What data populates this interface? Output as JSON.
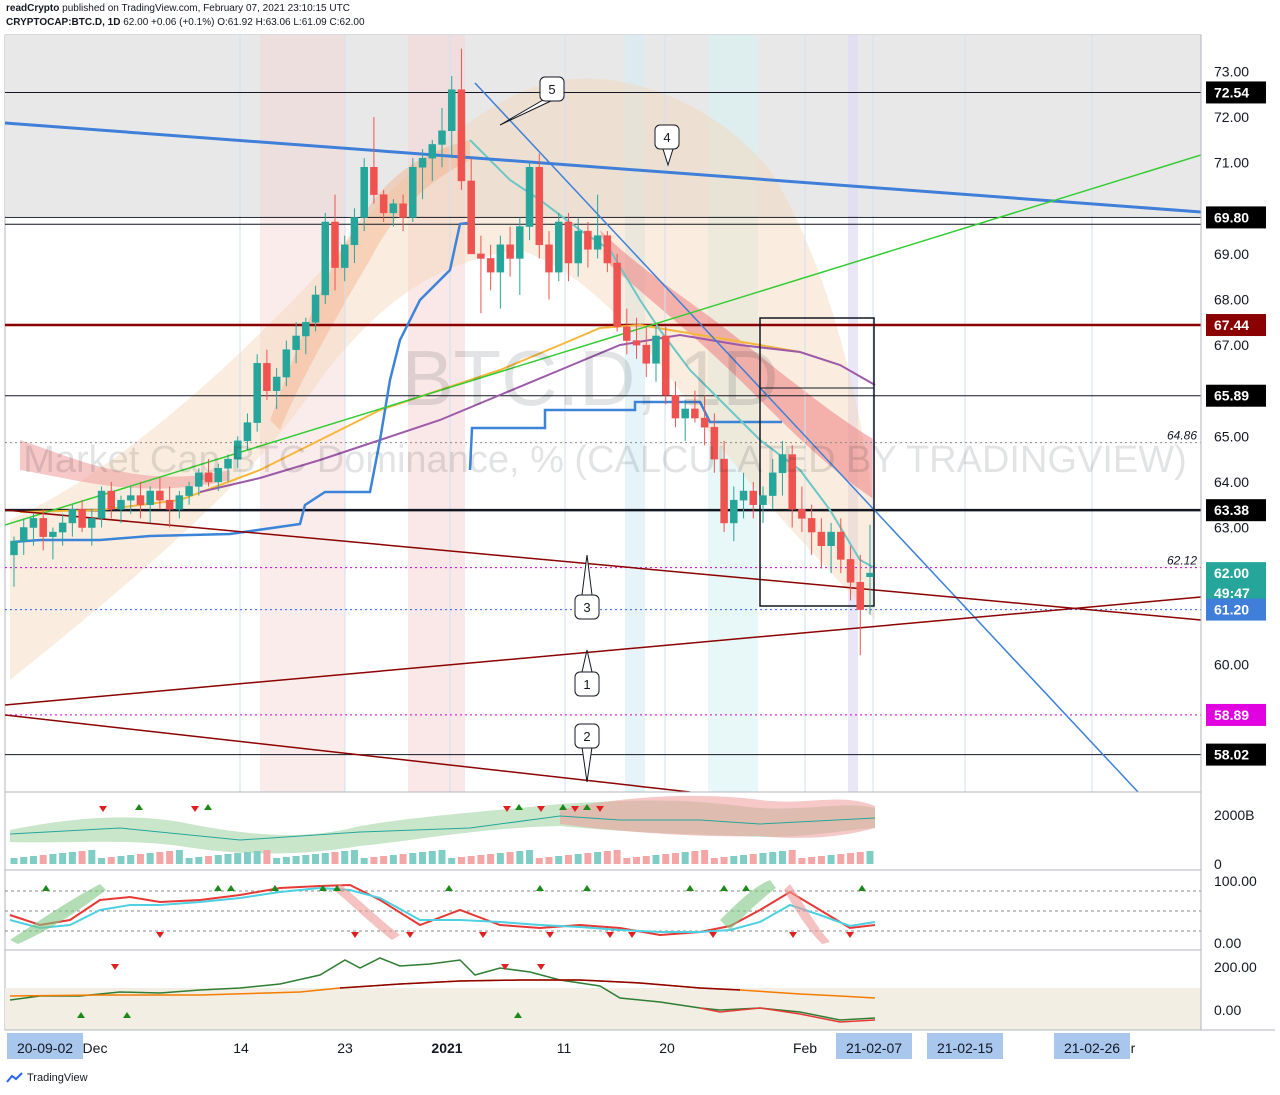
{
  "header": {
    "author": "readCrypto",
    "published_text": "published on TradingView.com, February 07, 2021 23:10:15 UTC",
    "symbol": "CRYPTOCAP:BTC.D, 1D",
    "last": "62.00",
    "change": "+0.06 (+0.1%)",
    "ohlc": "O:61.92 H:63.06 L:61.09 C:62.00"
  },
  "watermark": {
    "symbol": "BTC.D, 1D",
    "description": "Market Cap BTC Dominance, % (CALCULATED BY TRADINGVIEW)"
  },
  "footer": {
    "brand": "TradingView"
  },
  "colors": {
    "up": "#26a69a",
    "down": "#ef5350",
    "trend_blue": "#3f7fd9",
    "trend_green": "#33cc33",
    "trend_dark_red": "#8b0000",
    "ma_orange": "#f5b73b",
    "ma_purple": "#9c5aa8",
    "ma_blue": "#3c84d8"
  },
  "chart_data": {
    "type": "candlestick",
    "y_range": [
      57.2,
      73.8
    ],
    "y_ticks": [
      "73.00",
      "72.00",
      "71.00",
      "69.00",
      "68.00",
      "67.00",
      "65.00",
      "64.00",
      "63.00",
      "60.00"
    ],
    "price_labels": [
      {
        "text": "72.54",
        "value": 72.54,
        "style": "black"
      },
      {
        "text": "69.80",
        "value": 69.8,
        "style": "black"
      },
      {
        "text": "67.44",
        "value": 67.44,
        "style": "darkred"
      },
      {
        "text": "65.89",
        "value": 65.89,
        "style": "black"
      },
      {
        "text": "63.38",
        "value": 63.38,
        "style": "black"
      },
      {
        "text": "62.00",
        "value": 62.0,
        "style": "teal"
      },
      {
        "text": "49:47",
        "value": 61.56,
        "style": "teal"
      },
      {
        "text": "61.20",
        "value": 61.2,
        "style": "blue"
      },
      {
        "text": "58.89",
        "value": 58.89,
        "style": "magenta"
      },
      {
        "text": "58.02",
        "value": 58.02,
        "style": "black"
      }
    ],
    "inline_labels": [
      {
        "text": "64.86",
        "value": 64.86
      },
      {
        "text": "62.12",
        "value": 62.12
      }
    ],
    "horizontal_levels": [
      72.54,
      69.8,
      69.65,
      67.44,
      65.89,
      63.38,
      58.02
    ],
    "x_labels": [
      "20-09-02",
      "Dec",
      "14",
      "23",
      "2021",
      "11",
      "20",
      "Feb",
      "21-02-07",
      "21-02-15",
      "21-02-26",
      "r"
    ],
    "callouts": [
      "5",
      "4",
      "3",
      "1",
      "2"
    ],
    "candles": [
      [
        62.4,
        62.8,
        61.7,
        62.7
      ],
      [
        62.7,
        63.2,
        62.4,
        63.0
      ],
      [
        63.0,
        63.3,
        62.6,
        63.2
      ],
      [
        63.2,
        63.4,
        62.5,
        62.8
      ],
      [
        62.8,
        63.0,
        62.3,
        62.9
      ],
      [
        62.9,
        63.3,
        62.6,
        63.1
      ],
      [
        63.1,
        63.5,
        62.8,
        63.4
      ],
      [
        63.4,
        63.6,
        62.9,
        63.0
      ],
      [
        63.0,
        63.4,
        62.6,
        63.2
      ],
      [
        63.2,
        63.9,
        63.0,
        63.8
      ],
      [
        63.8,
        64.0,
        63.2,
        63.4
      ],
      [
        63.4,
        63.7,
        63.1,
        63.6
      ],
      [
        63.6,
        63.9,
        63.3,
        63.7
      ],
      [
        63.7,
        64.0,
        63.2,
        63.5
      ],
      [
        63.5,
        63.9,
        63.1,
        63.8
      ],
      [
        63.8,
        64.1,
        63.4,
        63.6
      ],
      [
        63.6,
        63.9,
        63.0,
        63.4
      ],
      [
        63.4,
        63.8,
        63.2,
        63.7
      ],
      [
        63.7,
        64.0,
        63.5,
        63.9
      ],
      [
        63.9,
        64.3,
        63.7,
        64.2
      ],
      [
        64.2,
        64.5,
        63.9,
        64.0
      ],
      [
        64.0,
        64.4,
        63.8,
        64.3
      ],
      [
        64.3,
        64.6,
        64.0,
        64.5
      ],
      [
        64.5,
        65.0,
        64.3,
        64.9
      ],
      [
        64.9,
        65.5,
        64.7,
        65.3
      ],
      [
        65.3,
        66.8,
        65.1,
        66.6
      ],
      [
        66.6,
        66.9,
        65.8,
        66.0
      ],
      [
        66.0,
        66.5,
        65.6,
        66.3
      ],
      [
        66.3,
        67.1,
        66.1,
        66.9
      ],
      [
        66.9,
        67.5,
        66.6,
        67.2
      ],
      [
        67.2,
        67.6,
        66.8,
        67.5
      ],
      [
        67.5,
        68.3,
        67.3,
        68.1
      ],
      [
        68.1,
        69.9,
        67.9,
        69.7
      ],
      [
        69.7,
        70.3,
        68.2,
        68.7
      ],
      [
        68.7,
        69.4,
        68.4,
        69.2
      ],
      [
        69.2,
        70.0,
        68.8,
        69.8
      ],
      [
        69.8,
        71.1,
        69.5,
        70.9
      ],
      [
        70.9,
        72.0,
        70.1,
        70.3
      ],
      [
        70.3,
        70.4,
        69.7,
        69.9
      ],
      [
        69.9,
        70.2,
        69.6,
        70.1
      ],
      [
        70.1,
        70.3,
        69.5,
        69.8
      ],
      [
        69.8,
        71.1,
        69.7,
        70.9
      ],
      [
        70.9,
        71.3,
        70.2,
        71.1
      ],
      [
        71.1,
        71.5,
        70.6,
        71.4
      ],
      [
        71.4,
        72.2,
        70.9,
        71.7
      ],
      [
        71.7,
        72.9,
        71.1,
        72.6
      ],
      [
        72.6,
        73.5,
        70.4,
        70.6
      ],
      [
        70.6,
        71.1,
        69.1,
        69.0
      ],
      [
        69.0,
        69.4,
        67.7,
        68.9
      ],
      [
        68.9,
        69.2,
        68.2,
        68.6
      ],
      [
        68.6,
        69.4,
        67.8,
        69.2
      ],
      [
        69.2,
        69.6,
        68.5,
        68.9
      ],
      [
        68.9,
        69.8,
        68.1,
        69.6
      ],
      [
        69.6,
        71.0,
        69.3,
        70.9
      ],
      [
        70.9,
        71.2,
        68.9,
        69.2
      ],
      [
        69.2,
        69.5,
        68.0,
        68.6
      ],
      [
        68.6,
        69.9,
        68.4,
        69.7
      ],
      [
        69.7,
        69.9,
        68.4,
        68.8
      ],
      [
        68.8,
        69.8,
        68.5,
        69.5
      ],
      [
        69.5,
        69.7,
        68.7,
        69.1
      ],
      [
        69.1,
        70.3,
        68.9,
        69.4
      ],
      [
        69.4,
        69.5,
        68.6,
        68.8
      ],
      [
        68.8,
        69.0,
        67.3,
        67.4
      ],
      [
        67.4,
        67.8,
        66.8,
        67.1
      ],
      [
        67.1,
        67.6,
        66.7,
        67.0
      ],
      [
        67.0,
        67.4,
        66.3,
        66.6
      ],
      [
        66.6,
        67.4,
        66.2,
        67.2
      ],
      [
        67.2,
        67.4,
        65.7,
        65.9
      ],
      [
        65.9,
        66.2,
        65.2,
        65.4
      ],
      [
        65.4,
        65.8,
        64.9,
        65.6
      ],
      [
        65.6,
        66.0,
        65.3,
        65.4
      ],
      [
        65.4,
        65.9,
        64.8,
        65.2
      ],
      [
        65.2,
        65.5,
        64.2,
        64.5
      ],
      [
        64.5,
        64.9,
        62.9,
        63.1
      ],
      [
        63.1,
        63.9,
        62.7,
        63.6
      ],
      [
        63.6,
        64.2,
        63.2,
        63.8
      ],
      [
        63.8,
        64.0,
        63.2,
        63.5
      ],
      [
        63.5,
        63.9,
        63.1,
        63.7
      ],
      [
        63.7,
        64.5,
        63.4,
        64.2
      ],
      [
        64.2,
        64.9,
        63.7,
        64.6
      ],
      [
        64.6,
        64.8,
        63.0,
        63.4
      ],
      [
        63.4,
        63.9,
        62.9,
        63.2
      ],
      [
        63.2,
        63.5,
        62.4,
        62.9
      ],
      [
        62.9,
        63.2,
        62.1,
        62.6
      ],
      [
        62.6,
        63.1,
        62.0,
        62.9
      ],
      [
        62.9,
        63.2,
        62.0,
        62.3
      ],
      [
        62.3,
        62.6,
        61.4,
        61.8
      ],
      [
        61.8,
        62.4,
        60.2,
        61.2
      ],
      [
        61.92,
        63.06,
        61.09,
        62.0
      ]
    ],
    "indicators": {
      "volume_axis": [
        "2000B",
        "0"
      ],
      "stoch_axis": [
        "100.00",
        "0.00"
      ],
      "macd_axis": [
        "200.00",
        "0.00"
      ]
    }
  }
}
